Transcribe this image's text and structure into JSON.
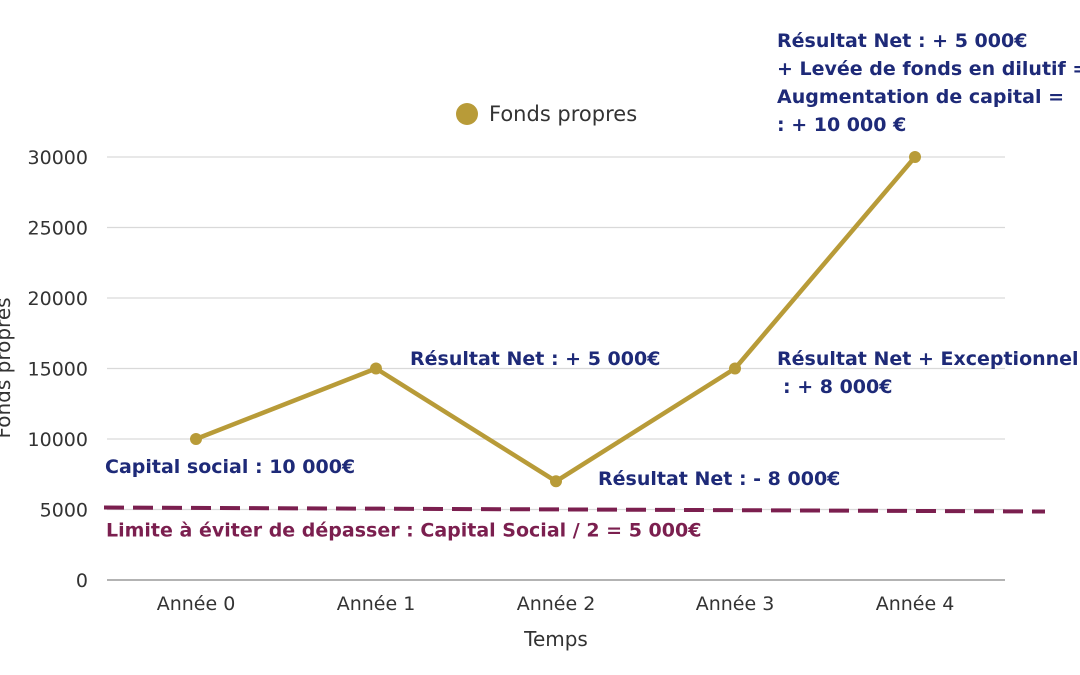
{
  "chart_data": {
    "type": "line",
    "categories": [
      "Année 0",
      "Année 1",
      "Année 2",
      "Année 3",
      "Année 4"
    ],
    "series": [
      {
        "name": "Fonds propres",
        "values": [
          10000,
          15000,
          7000,
          15000,
          30000
        ],
        "color": "#B89B38"
      }
    ],
    "xlabel": "Temps",
    "ylabel": "Fonds propres",
    "ylim": [
      0,
      30000
    ],
    "yticks": [
      0,
      5000,
      10000,
      15000,
      20000,
      25000,
      30000
    ],
    "grid": true,
    "legend": "top-center",
    "threshold": {
      "value": 5000,
      "label": "Limite à éviter de dépasser : Capital Social / 2 = 5 000€",
      "color": "#7B1F4F",
      "style": "dashed"
    },
    "annotations": [
      {
        "category": "Année 0",
        "lines": [
          "Capital social : 10 000€"
        ],
        "color": "#1E2A78"
      },
      {
        "category": "Année 1",
        "lines": [
          "Résultat Net : + 5 000€"
        ],
        "color": "#1E2A78"
      },
      {
        "category": "Année 2",
        "lines": [
          "Résultat Net : - 8 000€"
        ],
        "color": "#1E2A78"
      },
      {
        "category": "Année 3",
        "lines": [
          "Résultat Net + Exceptionnel",
          ": + 8 000€"
        ],
        "color": "#1E2A78"
      },
      {
        "category": "Année 4",
        "lines": [
          "Résultat Net : + 5 000€",
          "+ Levée de fonds en dilutif =",
          "Augmentation de capital =",
          ": + 10 000 €"
        ],
        "color": "#1E2A78"
      }
    ]
  }
}
